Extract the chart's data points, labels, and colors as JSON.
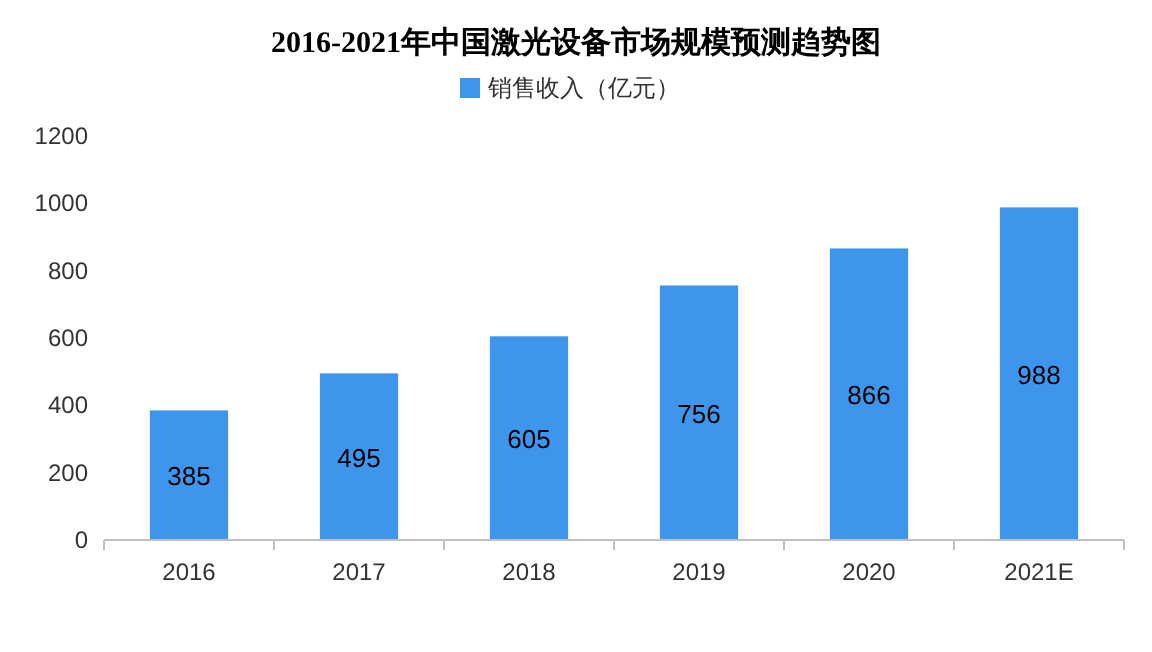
{
  "chart_data": {
    "type": "bar",
    "title": "2016-2021年中国激光设备市场规模预测趋势图",
    "categories": [
      "2016",
      "2017",
      "2018",
      "2019",
      "2020",
      "2021E"
    ],
    "series": [
      {
        "name": "销售收入（亿元）",
        "color": "#3d95ec",
        "values": [
          385,
          495,
          605,
          756,
          866,
          988
        ]
      }
    ],
    "ylim": [
      0,
      1200
    ],
    "yticks": [
      0,
      200,
      400,
      600,
      800,
      1000,
      1200
    ],
    "data_labels": true,
    "legend": "top",
    "grid": false
  }
}
